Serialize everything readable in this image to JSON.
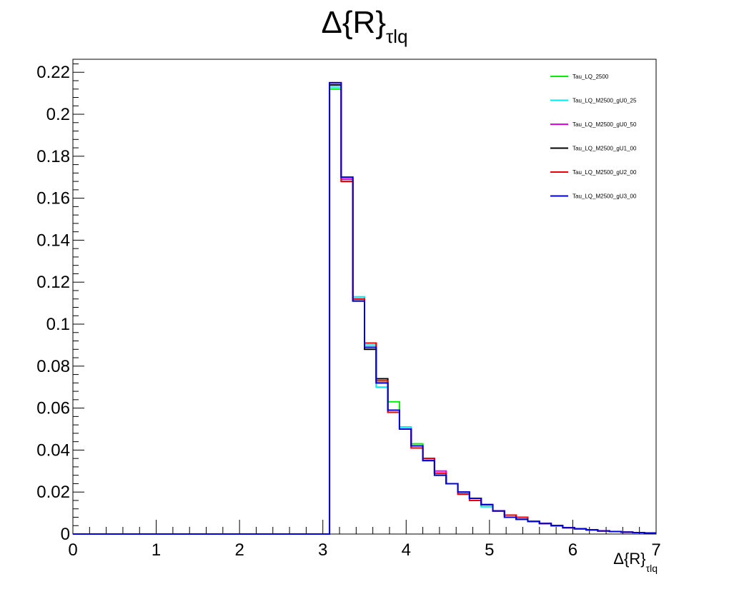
{
  "chart_data": {
    "type": "line",
    "title_main": "Δ{R}",
    "title_sub": "τlq",
    "xlabel_main": "Δ{R}",
    "xlabel_sub": "τlq",
    "ylabel": "",
    "xlim": [
      0,
      7
    ],
    "ylim": [
      0,
      0.2262
    ],
    "x_ticks": [
      "0",
      "1",
      "2",
      "3",
      "4",
      "5",
      "6",
      "7"
    ],
    "y_ticks": [
      "0",
      "0.02",
      "0.04",
      "0.06",
      "0.08",
      "0.1",
      "0.12",
      "0.14",
      "0.16",
      "0.18",
      "0.2",
      "0.22"
    ],
    "grid": false,
    "legend_position": "top-right",
    "bin_edges": [
      0,
      0.14,
      0.28,
      0.42,
      0.56,
      0.7,
      0.84,
      0.98,
      1.12,
      1.26,
      1.4,
      1.54,
      1.68,
      1.82,
      1.96,
      2.1,
      2.24,
      2.38,
      2.52,
      2.66,
      2.8,
      2.94,
      3.08,
      3.22,
      3.36,
      3.5,
      3.64,
      3.78,
      3.92,
      4.06,
      4.2,
      4.34,
      4.48,
      4.62,
      4.76,
      4.9,
      5.04,
      5.18,
      5.32,
      5.46,
      5.6,
      5.74,
      5.88,
      6.02,
      6.16,
      6.3,
      6.44,
      6.58,
      6.72,
      6.86,
      7.0
    ],
    "series": [
      {
        "name": "Tau_LQ_2500",
        "color": "#00ee00",
        "values": [
          0,
          0,
          0,
          0,
          0,
          0,
          0,
          0,
          0,
          0,
          0,
          0,
          0,
          0,
          0,
          0,
          0,
          0,
          0,
          0,
          0,
          0,
          0.212,
          0.168,
          0.112,
          0.091,
          0.073,
          0.063,
          0.051,
          0.043,
          0.035,
          0.029,
          0.024,
          0.02,
          0.017,
          0.014,
          0.011,
          0.009,
          0.008,
          0.006,
          0.005,
          0.004,
          0.003,
          0.0025,
          0.002,
          0.0015,
          0.0012,
          0.0009,
          0.0007,
          0.0005
        ]
      },
      {
        "name": "Tau_LQ_M2500_gU0_25",
        "color": "#00e8f0",
        "values": [
          0,
          0,
          0,
          0,
          0,
          0,
          0,
          0,
          0,
          0,
          0,
          0,
          0,
          0,
          0,
          0,
          0,
          0,
          0,
          0,
          0,
          0,
          0.213,
          0.168,
          0.113,
          0.09,
          0.07,
          0.058,
          0.051,
          0.042,
          0.035,
          0.029,
          0.024,
          0.02,
          0.017,
          0.013,
          0.011,
          0.008,
          0.007,
          0.006,
          0.005,
          0.004,
          0.003,
          0.0025,
          0.002,
          0.0015,
          0.0012,
          0.0009,
          0.0007,
          0.0005
        ]
      },
      {
        "name": "Tau_LQ_M2500_gU0_50",
        "color": "#e800e8",
        "values": [
          0,
          0,
          0,
          0,
          0,
          0,
          0,
          0,
          0,
          0,
          0,
          0,
          0,
          0,
          0,
          0,
          0,
          0,
          0,
          0,
          0,
          0,
          0.214,
          0.169,
          0.112,
          0.091,
          0.072,
          0.058,
          0.05,
          0.041,
          0.035,
          0.03,
          0.024,
          0.02,
          0.017,
          0.014,
          0.011,
          0.008,
          0.008,
          0.006,
          0.005,
          0.004,
          0.003,
          0.0025,
          0.002,
          0.0015,
          0.0012,
          0.0009,
          0.0007,
          0.0005
        ]
      },
      {
        "name": "Tau_LQ_M2500_gU1_00",
        "color": "#000000",
        "values": [
          0,
          0,
          0,
          0,
          0,
          0,
          0,
          0,
          0,
          0,
          0,
          0,
          0,
          0,
          0,
          0,
          0,
          0,
          0,
          0,
          0,
          0,
          0.214,
          0.17,
          0.111,
          0.088,
          0.074,
          0.059,
          0.05,
          0.042,
          0.036,
          0.028,
          0.024,
          0.019,
          0.017,
          0.014,
          0.011,
          0.009,
          0.007,
          0.006,
          0.005,
          0.004,
          0.003,
          0.0025,
          0.002,
          0.0015,
          0.0012,
          0.0009,
          0.0007,
          0.0005
        ]
      },
      {
        "name": "Tau_LQ_M2500_gU2_00",
        "color": "#ee0000",
        "values": [
          0,
          0,
          0,
          0,
          0,
          0,
          0,
          0,
          0,
          0,
          0,
          0,
          0,
          0,
          0,
          0,
          0,
          0,
          0,
          0,
          0,
          0,
          0.215,
          0.168,
          0.112,
          0.091,
          0.073,
          0.058,
          0.05,
          0.041,
          0.036,
          0.029,
          0.024,
          0.019,
          0.016,
          0.014,
          0.011,
          0.009,
          0.008,
          0.006,
          0.005,
          0.004,
          0.003,
          0.0025,
          0.002,
          0.0015,
          0.0012,
          0.0009,
          0.0007,
          0.0005
        ]
      },
      {
        "name": "Tau_LQ_M2500_gU3_00",
        "color": "#0000dd",
        "values": [
          0,
          0,
          0,
          0,
          0,
          0,
          0,
          0,
          0,
          0,
          0,
          0,
          0,
          0,
          0,
          0,
          0,
          0,
          0,
          0,
          0,
          0,
          0.215,
          0.17,
          0.111,
          0.089,
          0.072,
          0.059,
          0.05,
          0.042,
          0.035,
          0.028,
          0.024,
          0.02,
          0.017,
          0.014,
          0.011,
          0.008,
          0.007,
          0.006,
          0.005,
          0.004,
          0.003,
          0.0025,
          0.002,
          0.0015,
          0.0012,
          0.0009,
          0.0007,
          0.0005
        ]
      }
    ]
  }
}
